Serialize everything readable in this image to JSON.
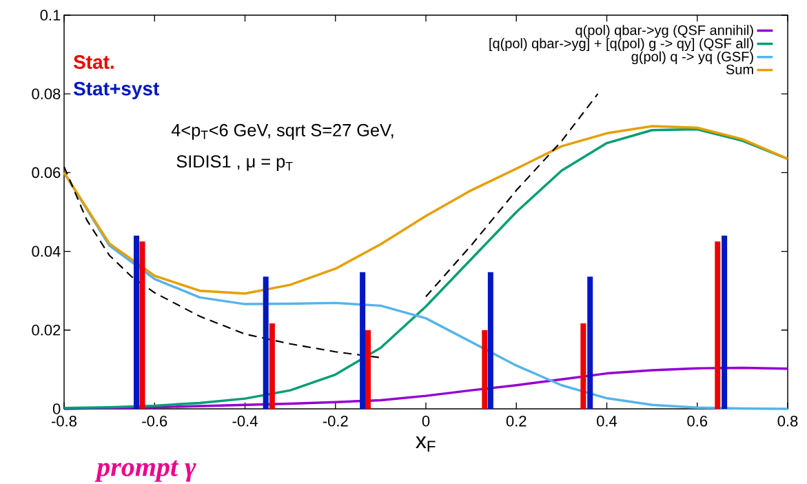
{
  "chart_data": {
    "type": "line",
    "xlabel": "x$_{F}$",
    "xlim": [
      -0.8,
      0.8
    ],
    "ylim": [
      0,
      0.1
    ],
    "xticks": [
      -0.8,
      -0.6,
      -0.4,
      -0.2,
      0,
      0.2,
      0.4,
      0.6,
      0.8
    ],
    "yticks": [
      0,
      0.02,
      0.04,
      0.06,
      0.08,
      0.1
    ],
    "legend": "top right",
    "annotations": [
      "4<p$_{T}$<6 GeV, sqrt S=27 GeV,",
      " SIDIS1 , μ = p$_{T}$",
      "prompt γ"
    ],
    "series": [
      {
        "name": "q(pol) qbar->yg (QSF annihil)",
        "color": "#9400d3",
        "x": [
          -0.8,
          -0.7,
          -0.6,
          -0.5,
          -0.4,
          -0.3,
          -0.2,
          -0.1,
          0,
          0.1,
          0.2,
          0.3,
          0.4,
          0.5,
          0.6,
          0.7,
          0.8
        ],
        "values": [
          0,
          0.0002,
          0.0004,
          0.0007,
          0.001,
          0.0013,
          0.0017,
          0.0022,
          0.0033,
          0.0047,
          0.006,
          0.0075,
          0.009,
          0.0098,
          0.0103,
          0.0104,
          0.0102
        ]
      },
      {
        "name": "[q(pol) qbar->yg] + [q(pol) g -> qy] (QSF all)",
        "color": "#009e73",
        "x": [
          -0.8,
          -0.7,
          -0.6,
          -0.5,
          -0.4,
          -0.3,
          -0.2,
          -0.1,
          0,
          0.1,
          0.2,
          0.3,
          0.4,
          0.5,
          0.6,
          0.7,
          0.8
        ],
        "values": [
          0.0002,
          0.0004,
          0.0008,
          0.0015,
          0.0026,
          0.0047,
          0.0087,
          0.0155,
          0.026,
          0.038,
          0.05,
          0.0605,
          0.0675,
          0.0708,
          0.071,
          0.0681,
          0.0635
        ]
      },
      {
        "name": "g(pol) q -> yq (GSF)",
        "color": "#56b4e9",
        "x": [
          -0.8,
          -0.7,
          -0.6,
          -0.5,
          -0.4,
          -0.3,
          -0.2,
          -0.1,
          0,
          0.1,
          0.2,
          0.3,
          0.4,
          0.5,
          0.6,
          0.7,
          0.8
        ],
        "values": [
          0.06,
          0.0415,
          0.033,
          0.0283,
          0.0266,
          0.0267,
          0.0269,
          0.0262,
          0.023,
          0.017,
          0.011,
          0.006,
          0.0027,
          0.001,
          0.0003,
          0.0001,
          0
        ]
      },
      {
        "name": "Sum",
        "color": "#e69f00",
        "x": [
          -0.8,
          -0.7,
          -0.6,
          -0.5,
          -0.4,
          -0.3,
          -0.2,
          -0.1,
          0,
          0.1,
          0.2,
          0.3,
          0.4,
          0.5,
          0.6,
          0.7,
          0.8
        ],
        "values": [
          0.06,
          0.042,
          0.0338,
          0.03,
          0.0293,
          0.0315,
          0.0356,
          0.0418,
          0.049,
          0.0555,
          0.061,
          0.0667,
          0.07,
          0.0718,
          0.0714,
          0.0685,
          0.0635
        ]
      },
      {
        "type": "line",
        "color": "#000000",
        "line_style": "dashed",
        "x": [
          -0.8,
          -0.75,
          -0.7,
          -0.65,
          -0.6,
          -0.5,
          -0.4,
          -0.3,
          -0.2,
          -0.1
        ],
        "values": [
          0.0615,
          0.048,
          0.039,
          0.0335,
          0.0295,
          0.0235,
          0.019,
          0.0165,
          0.0145,
          0.013
        ]
      },
      {
        "type": "line",
        "color": "#000000",
        "line_style": "dashed",
        "x": [
          0,
          0.1,
          0.2,
          0.3,
          0.38
        ],
        "values": [
          0.0285,
          0.0415,
          0.0555,
          0.068,
          0.08
        ]
      },
      {
        "type": "bar",
        "name": "Stat.",
        "color": "#ee0000",
        "x": [
          -0.627,
          -0.34,
          -0.128,
          0.13,
          0.348,
          0.645
        ],
        "values": [
          0.0425,
          0.0217,
          0.02,
          0.02,
          0.0217,
          0.0425
        ]
      },
      {
        "type": "bar",
        "name": "Stat+syst",
        "color": "#0018c0",
        "x": [
          -0.64,
          -0.354,
          -0.14,
          0.143,
          0.363,
          0.66
        ],
        "values": [
          0.044,
          0.0336,
          0.0347,
          0.0347,
          0.0336,
          0.044
        ]
      }
    ]
  }
}
